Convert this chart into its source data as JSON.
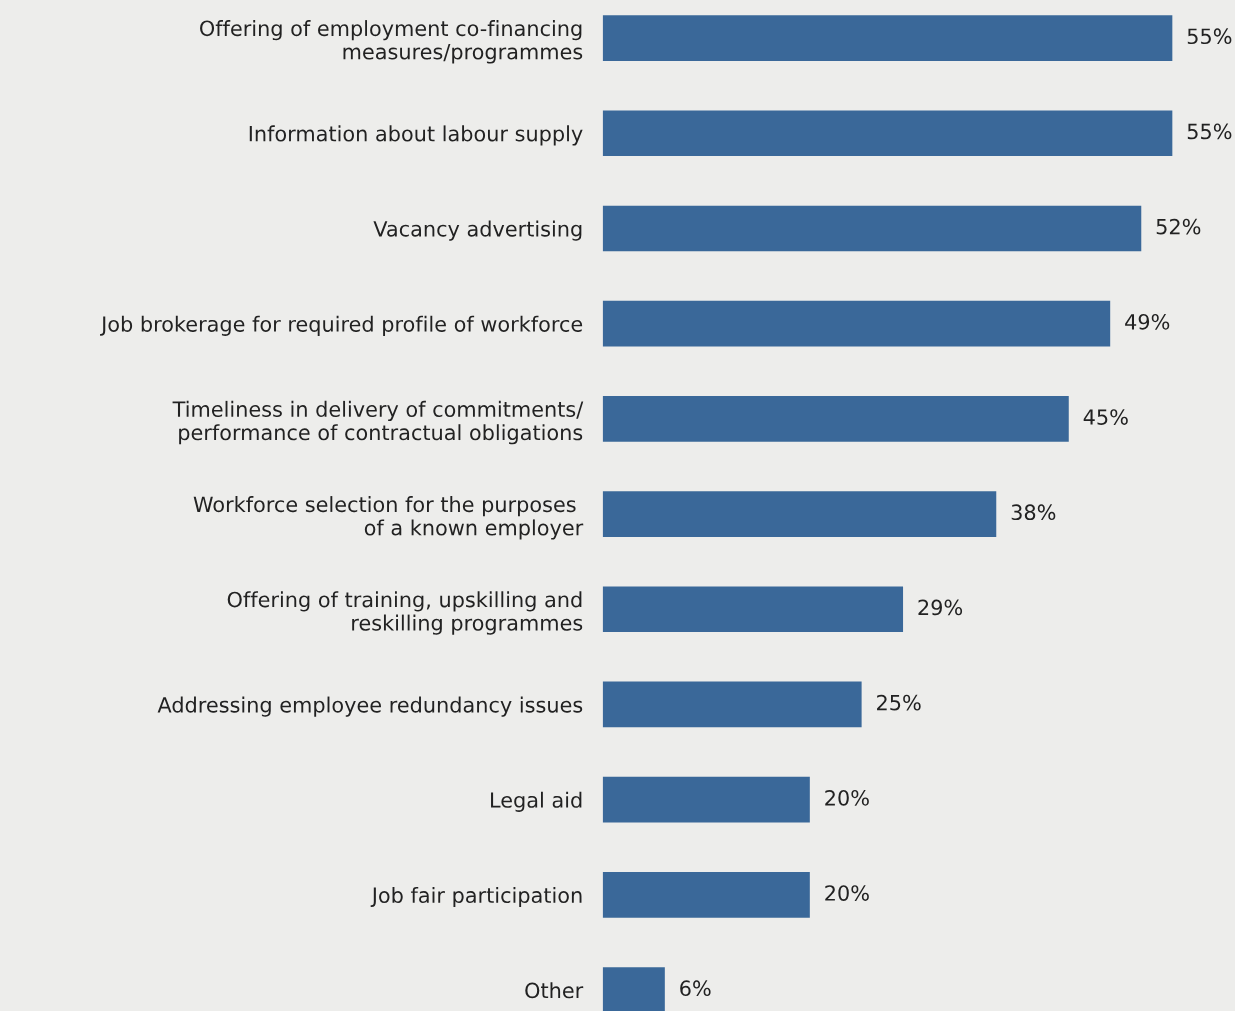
{
  "chart_data": {
    "type": "bar",
    "orientation": "horizontal",
    "tick_labels": "y",
    "grid": false,
    "legend": false,
    "categories": [
      "Offering of employment co-financing\nmeasures/programmes",
      "Information about labour supply",
      "Vacancy advertising",
      "Job brokerage for required profile of workforce",
      "Timeliness in delivery of commitments/\nperformance of contractual obligations",
      "Workforce selection for the purposes \nof a known employer",
      "Offering of training, upskilling and\nreskilling programmes",
      "Addressing employee redundancy issues",
      "Legal aid",
      "Job fair participation",
      "Other"
    ],
    "values": [
      55,
      55,
      52,
      49,
      45,
      38,
      29,
      25,
      20,
      20,
      6
    ],
    "value_labels": [
      "55%",
      "55%",
      "52%",
      "49%",
      "45%",
      "38%",
      "29%",
      "25%",
      "20%",
      "20%",
      "6%"
    ],
    "color": "#3a6899"
  }
}
